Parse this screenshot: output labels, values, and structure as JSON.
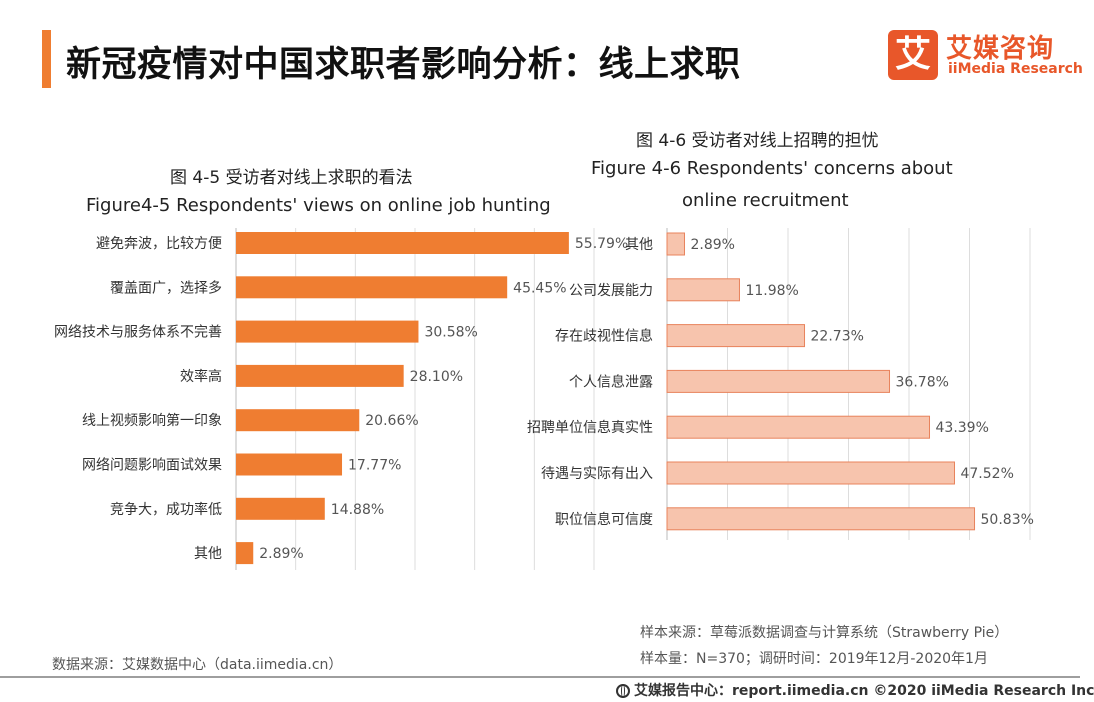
{
  "header": {
    "title": "新冠疫情对中国求职者影响分析：线上求职",
    "logo_mark": "艾",
    "logo_cn": "艾媒咨询",
    "logo_en": "iiMedia Research"
  },
  "colors": {
    "accent": "#ef7d31",
    "left_bar": "#ef7d31",
    "right_bar_fill": "#f7c4ad",
    "right_bar_stroke": "#e8835c"
  },
  "chart_data": [
    {
      "type": "bar",
      "orientation": "horizontal",
      "title_cn": "图 4-5 受访者对线上求职的看法",
      "title_en": "Figure4-5 Respondents' views on online job hunting",
      "categories": [
        "避免奔波，比较方便",
        "覆盖面广，选择多",
        "网络技术与服务体系不完善",
        "效率高",
        "线上视频影响第一印象",
        "网络问题影响面试效果",
        "竞争大，成功率低",
        "其他"
      ],
      "values": [
        55.79,
        45.45,
        30.58,
        28.1,
        20.66,
        17.77,
        14.88,
        2.89
      ],
      "labels": [
        "55.79%",
        "45.45%",
        "30.58%",
        "28.10%",
        "20.66%",
        "17.77%",
        "14.88%",
        "2.89%"
      ],
      "xlim": [
        0,
        60
      ],
      "grid": true
    },
    {
      "type": "bar",
      "orientation": "horizontal",
      "title_cn": "图 4-6 受访者对线上招聘的担忧",
      "title_en_line1": "Figure 4-6  Respondents' concerns about",
      "title_en_line2": "online recruitment",
      "categories": [
        "其他",
        "公司发展能力",
        "存在歧视性信息",
        "个人信息泄露",
        "招聘单位信息真实性",
        "待遇与实际有出入",
        "职位信息可信度"
      ],
      "values": [
        2.89,
        11.98,
        22.73,
        36.78,
        43.39,
        47.52,
        50.83
      ],
      "labels": [
        "2.89%",
        "11.98%",
        "22.73%",
        "36.78%",
        "43.39%",
        "47.52%",
        "50.83%"
      ],
      "xlim": [
        0,
        60
      ],
      "grid": true
    }
  ],
  "notes": {
    "source_left": "数据来源：艾媒数据中心（data.iimedia.cn）",
    "sample_source": "样本来源：草莓派数据调查与计算系统（Strawberry Pie）",
    "sample_size": "样本量：N=370；调研时间：2019年12月-2020年1月"
  },
  "footer": {
    "text": "艾媒报告中心：report.iimedia.cn  ©2020  iiMedia Research  Inc"
  }
}
